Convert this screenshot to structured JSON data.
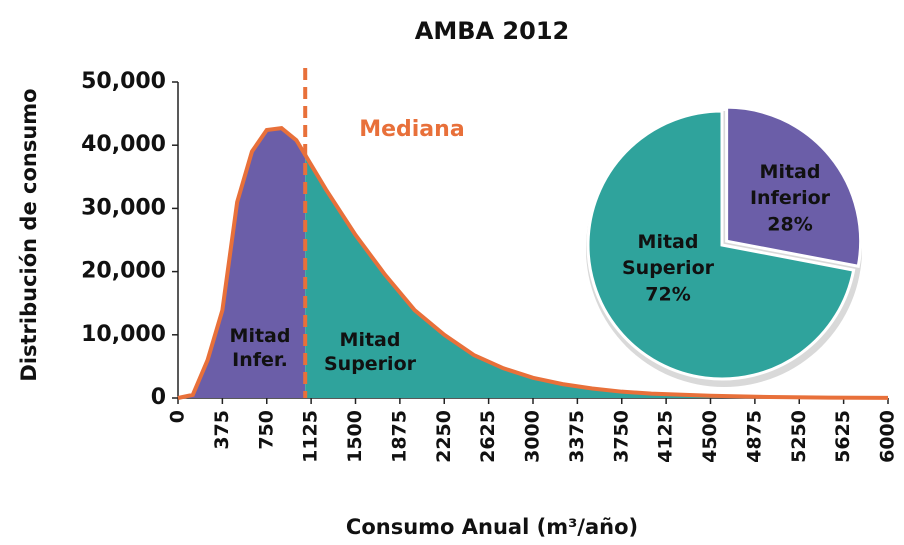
{
  "chart_data": [
    {
      "type": "area",
      "title": "AMBA 2012",
      "xlabel": "Consumo Anual (m³/año)",
      "ylabel": "Distribución de consumo",
      "x": [
        0,
        125,
        250,
        375,
        500,
        625,
        750,
        875,
        1000,
        1125,
        1250,
        1500,
        1750,
        2000,
        2250,
        2500,
        2750,
        3000,
        3250,
        3500,
        3750,
        4000,
        4500,
        5000,
        5500,
        6000
      ],
      "values": [
        0,
        500,
        6000,
        13900,
        31000,
        39000,
        42400,
        42700,
        40800,
        36900,
        33000,
        25800,
        19500,
        13900,
        10000,
        6800,
        4700,
        3200,
        2200,
        1500,
        1000,
        700,
        350,
        150,
        60,
        20
      ],
      "line_color": "#e8703a",
      "lower_color": "#6b5ea8",
      "upper_color": "#2fa39c",
      "median": 1075,
      "median_label": "Mediana",
      "lower_label": "Mitad Infer.",
      "upper_label": "Mitad Superior",
      "xlim": [
        0,
        6000
      ],
      "ylim": [
        0,
        50000
      ],
      "xticks": [
        0,
        375,
        750,
        1125,
        1500,
        1875,
        2250,
        2625,
        3000,
        3375,
        3750,
        4125,
        4500,
        4875,
        5250,
        5625,
        6000
      ],
      "yticks": [
        0,
        {
          "value": 10000,
          "label": "10,000"
        },
        {
          "value": 20000,
          "label": "20,000"
        },
        {
          "value": 30000,
          "label": "30,000"
        },
        {
          "value": 40000,
          "label": "40,000"
        },
        {
          "value": 50000,
          "label": "50,000"
        }
      ]
    },
    {
      "type": "pie",
      "categories": [
        "Mitad Inferior",
        "Mitad Superior"
      ],
      "values": [
        28,
        72
      ],
      "value_labels": [
        "28%",
        "72%"
      ],
      "colors": [
        "#6b5ea8",
        "#2fa39c"
      ]
    }
  ]
}
